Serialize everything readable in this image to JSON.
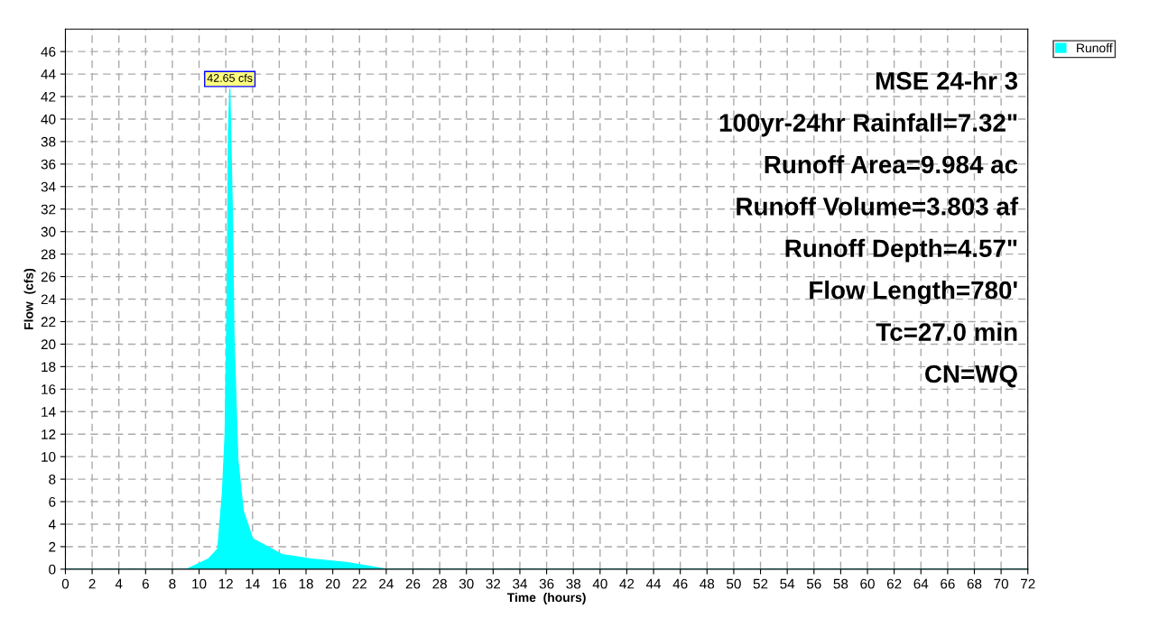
{
  "chart_data": {
    "type": "area",
    "xlabel": "Time  (hours)",
    "ylabel": "Flow  (cfs)",
    "x": [
      0,
      9.1,
      10.7,
      11.4,
      11.75,
      11.95,
      12.1,
      12.2,
      12.3,
      12.5,
      12.6,
      12.9,
      13.3,
      14,
      16.2,
      18.4,
      21,
      24,
      72
    ],
    "series": [
      {
        "name": "Runoff",
        "color": "#00ffff",
        "values": [
          0,
          0,
          0.9,
          1.8,
          6.8,
          12,
          24,
          39,
          42.65,
          30.9,
          21.1,
          9.7,
          5.2,
          2.7,
          1.3,
          0.9,
          0.6,
          0,
          0
        ]
      }
    ],
    "xlim": [
      0,
      72
    ],
    "xticks": [
      0,
      2,
      4,
      6,
      8,
      10,
      12,
      14,
      16,
      18,
      20,
      22,
      24,
      26,
      28,
      30,
      32,
      34,
      36,
      38,
      40,
      42,
      44,
      46,
      48,
      50,
      52,
      54,
      56,
      58,
      60,
      62,
      64,
      66,
      68,
      70,
      72
    ],
    "ylim": [
      0,
      48
    ],
    "yticks": [
      0,
      2,
      4,
      6,
      8,
      10,
      12,
      14,
      16,
      18,
      20,
      22,
      24,
      26,
      28,
      30,
      32,
      34,
      36,
      38,
      40,
      42,
      44,
      46
    ],
    "grid": true,
    "legend": "top right",
    "annotations": [
      {
        "text": "42.65 cfs",
        "x": 12.3,
        "y": 42.65
      },
      "MSE 24-hr 3",
      "100yr-24hr Rainfall=7.32\"",
      "Runoff Area=9.984 ac",
      "Runoff Volume=3.803 af",
      "Runoff Depth=4.57\"",
      "Flow Length=780'",
      "Tc=27.0 min",
      "CN=WQ"
    ]
  }
}
